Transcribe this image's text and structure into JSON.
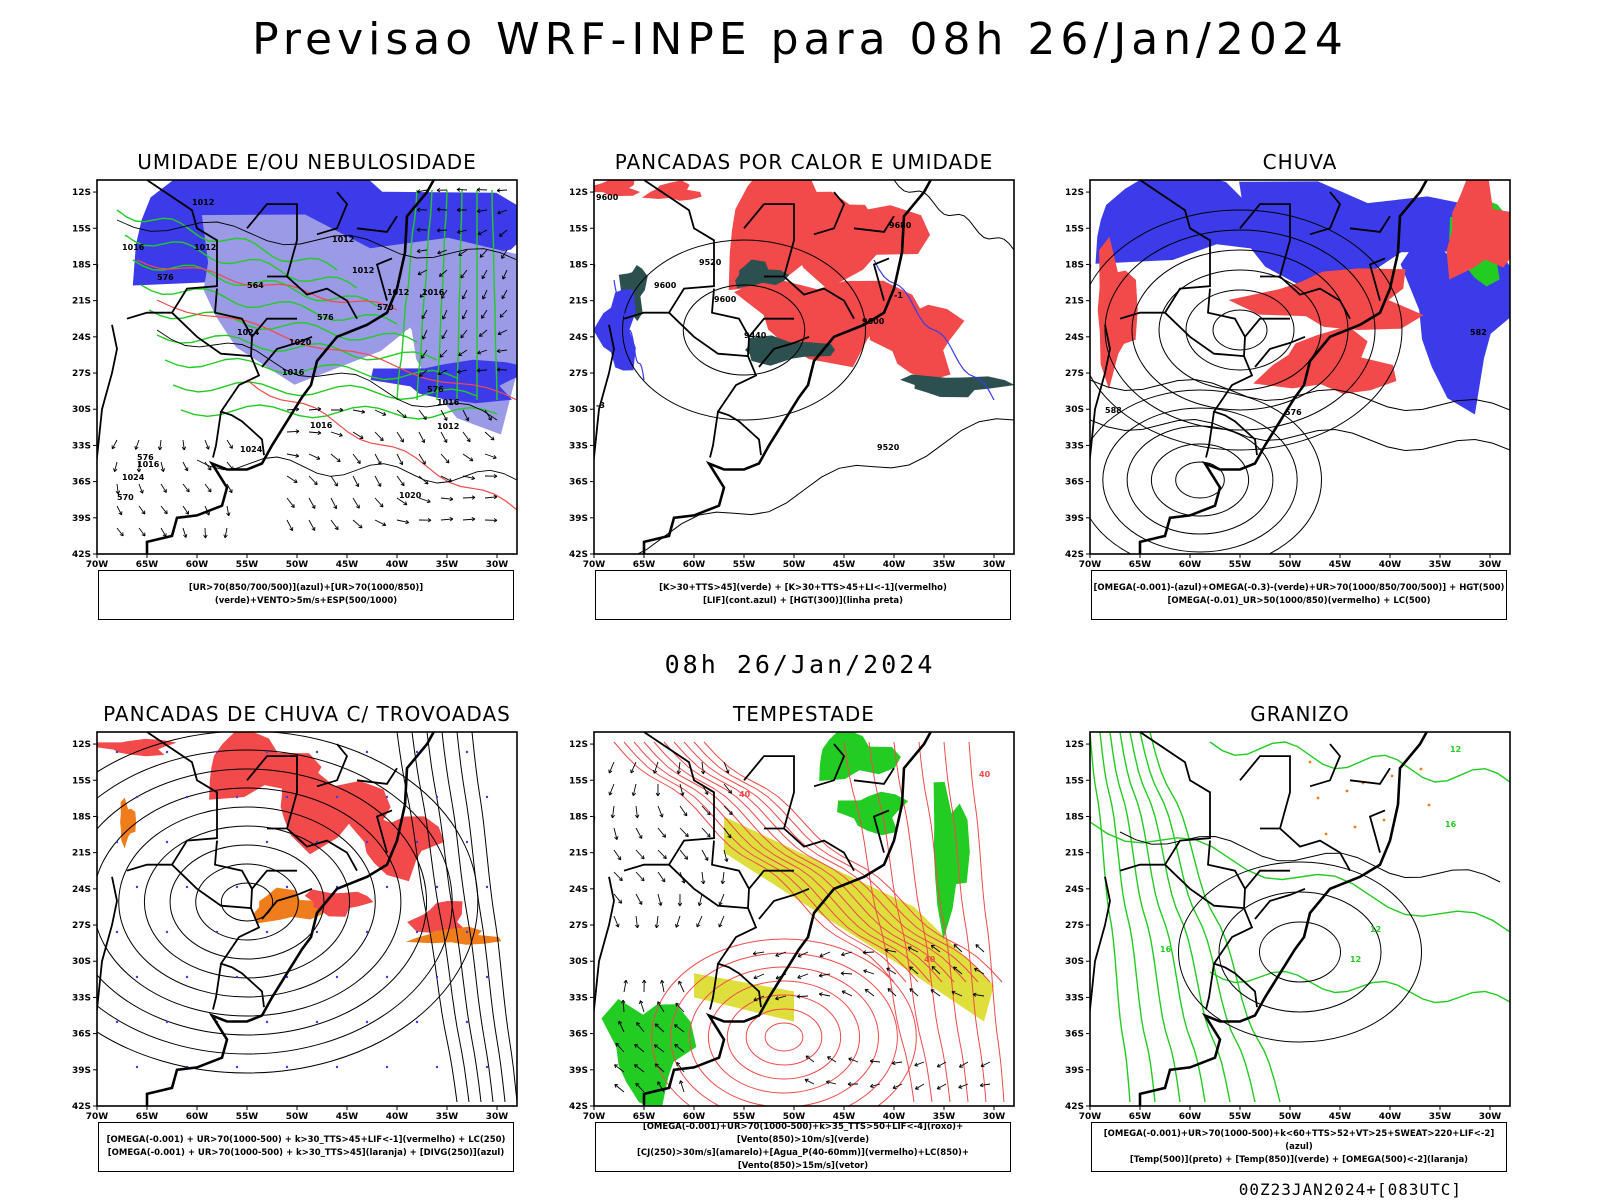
{
  "title": "Previsao WRF-INPE  para 08h 26/Jan/2024",
  "mid_date": "08h 26/Jan/2024",
  "footer": "00Z23JAN2024+[083UTC]",
  "lat_labels": [
    "12S",
    "15S",
    "18S",
    "21S",
    "24S",
    "27S",
    "30S",
    "33S",
    "36S",
    "39S",
    "42S"
  ],
  "lon_labels": [
    "70W",
    "65W",
    "60W",
    "55W",
    "50W",
    "45W",
    "40W",
    "35W",
    "30W"
  ],
  "colors": {
    "blue": "#3b3bea",
    "light_blue": "#9a9ae6",
    "green": "#22cc22",
    "red": "#f24a4a",
    "dark_teal": "#2c5050",
    "orange": "#ef7d1c",
    "yellow": "#dede3c"
  },
  "panels": [
    {
      "title": "UMIDADE E/OU NEBULOSIDADE",
      "caption": [
        "[UR>70(850/700/500)](azul)+[UR>70(1000/850)](verde)+VENTO>5m/s+ESP(500/1000)"
      ],
      "contour_labels": [
        "1012",
        "1016",
        "1012",
        "1012",
        "1012",
        "1012",
        "1016",
        "1024",
        "1020",
        "1016",
        "1016",
        "1024",
        "1016",
        "1012",
        "1020",
        "1016",
        "1024",
        "570",
        "576",
        "564",
        "570",
        "576",
        "576",
        "576"
      ]
    },
    {
      "title": "PANCADAS POR CALOR E UMIDADE",
      "caption": [
        "[K>30+TTS>45](verde) + [K>30+TTS>45+LI<-1](vermelho)",
        "[LIF](cont.azul) + [HGT(300)](linha preta)"
      ],
      "contour_labels": [
        "9600",
        "9680",
        "9520",
        "9600",
        "9440",
        "9600",
        "9520",
        "-3",
        "-1",
        "9600"
      ]
    },
    {
      "title": "CHUVA",
      "caption": [
        "[OMEGA(-0.001)-(azul)+OMEGA(-0.3)-(verde)+UR>70(1000/850/700/500)] + HGT(500)",
        "[OMEGA(-0.01)_UR>50(1000/850)(vermelho) + LC(500)"
      ],
      "contour_labels": [
        "588",
        "576",
        "582"
      ]
    },
    {
      "title": "PANCADAS DE CHUVA C/ TROVOADAS",
      "caption": [
        "[OMEGA(-0.001) + UR>70(1000-500) + k>30_TTS>45+LIF<-1](vermelho) + LC(250)",
        "[OMEGA(-0.001) + UR>70(1000-500) + k>30_TTS>45](laranja) + [DIVG(250)](azul)"
      ],
      "contour_labels": []
    },
    {
      "title": "TEMPESTADE",
      "caption": [
        "[OMEGA(-0.001)+UR>70(1000-500)+k>35_TTS>50+LIF<-4](roxo)+[Vento(850)>10m/s](verde)",
        "[CJ(250)>30m/s](amarelo)+[Agua_P(40-60mm)](vermelho)+LC(850)+[Vento(850)>15m/s](vetor)"
      ],
      "contour_labels": [
        "40",
        "40",
        "40"
      ]
    },
    {
      "title": "GRANIZO",
      "caption": [
        "[OMEGA(-0.001)+UR>70(1000-500)+k<60+TTS>52+VT>25+SWEAT>220+LIF<-2](azul)",
        "[Temp(500)](preto) + [Temp(850)](verde) + [OMEGA(500)<-2](laranja)"
      ],
      "contour_labels": [
        "12",
        "16",
        "12",
        "12",
        "16"
      ]
    }
  ]
}
